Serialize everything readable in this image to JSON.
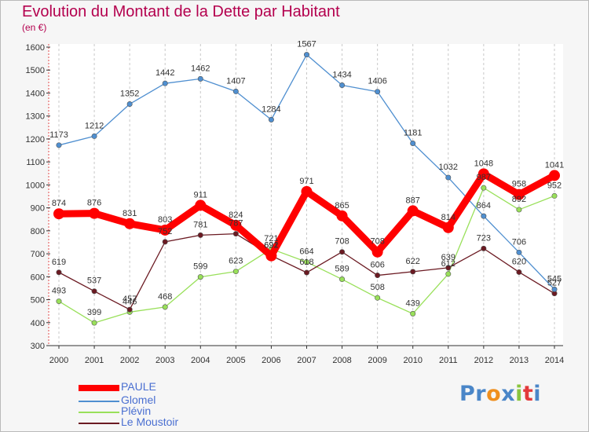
{
  "title": "Evolution du Montant de la Dette par Habitant",
  "subtitle": "(en €)",
  "logo": {
    "text": [
      "P",
      "r",
      "o",
      "x",
      "i",
      "t",
      "i"
    ],
    "colors": [
      "#4a86c8",
      "#4a86c8",
      "#ef8f1e",
      "#4a86c8",
      "#8ac53e",
      "#e3393b",
      "#4a86c8"
    ]
  },
  "chart_data": {
    "type": "line",
    "title": "Evolution du Montant de la Dette par Habitant",
    "ylabel": "(en €)",
    "xlabel": "",
    "x": [
      "2000",
      "2001",
      "2002",
      "2003",
      "2004",
      "2005",
      "2006",
      "2007",
      "2008",
      "2009",
      "2010",
      "2011",
      "2012",
      "2013",
      "2014"
    ],
    "ylim": [
      300,
      1600
    ],
    "yticks": [
      "300",
      "400",
      "500",
      "600",
      "700",
      "800",
      "900",
      "1000",
      "1100",
      "1200",
      "1300",
      "1400",
      "1500",
      "1600"
    ],
    "grid": "vertical dashed",
    "legend_position": "bottom-left",
    "series": [
      {
        "name": "PAULE",
        "color": "#ff0000",
        "values": [
          874,
          876,
          831,
          803,
          911,
          824,
          691,
          971,
          865,
          708,
          887,
          814,
          1048,
          958,
          1041
        ],
        "labels": [
          "874",
          "876",
          "831",
          "803",
          "911",
          "824",
          "691",
          "971",
          "865",
          "708",
          "887",
          "814",
          "1048",
          "958",
          "1041"
        ]
      },
      {
        "name": "Glomel",
        "color": "#4f8fd0",
        "values": [
          1173,
          1212,
          1352,
          1442,
          1462,
          1407,
          1284,
          1567,
          1434,
          1406,
          1181,
          1032,
          864,
          706,
          545
        ],
        "labels": [
          "1173",
          "1212",
          "1352",
          "1442",
          "1462",
          "1407",
          "1284",
          "1567",
          "1434",
          "1406",
          "1181",
          "1032",
          "864",
          "706",
          "545"
        ]
      },
      {
        "name": "Plévin",
        "color": "#99e05a",
        "values": [
          493,
          399,
          446,
          468,
          599,
          623,
          721,
          664,
          589,
          508,
          439,
          612,
          987,
          892,
          952
        ],
        "labels": [
          "493",
          "399",
          "446",
          "468",
          "599",
          "623",
          "721",
          "664",
          "589",
          "508",
          "439",
          "612",
          "987",
          "892",
          "952"
        ]
      },
      {
        "name": "Le Moustoir",
        "color": "#6b1a22",
        "values": [
          619,
          537,
          457,
          752,
          781,
          787,
          692,
          618,
          708,
          606,
          622,
          639,
          723,
          620,
          527
        ],
        "labels": [
          "619",
          "537",
          "457",
          "752",
          "781",
          "787",
          "692",
          "618",
          "708",
          "606",
          "622",
          "639",
          "723",
          "620",
          "527"
        ]
      }
    ]
  }
}
